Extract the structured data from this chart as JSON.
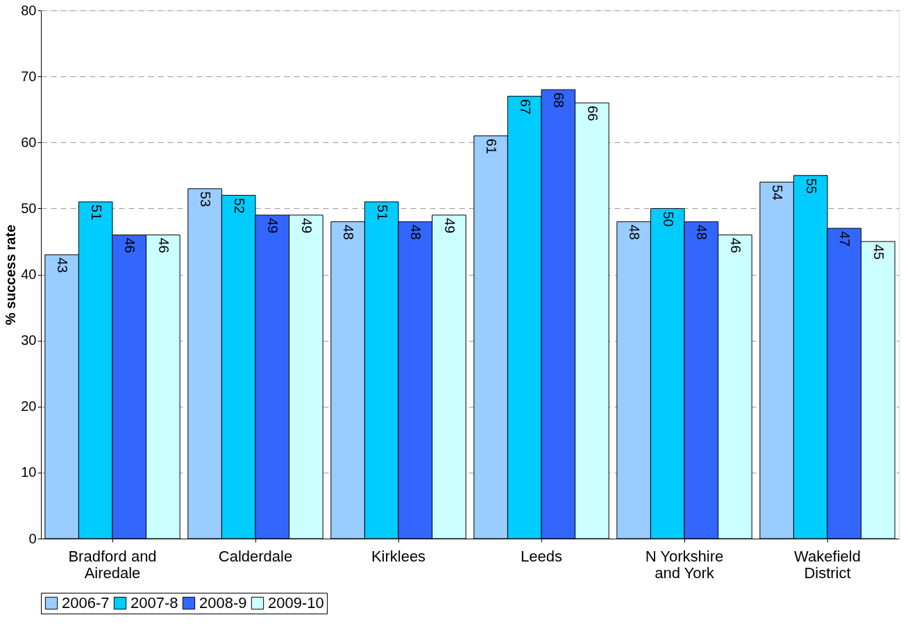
{
  "chart_data": {
    "type": "bar",
    "ylabel": "% success rate",
    "categories": [
      "Bradford and Airedale",
      "Calderdale",
      "Kirklees",
      "Leeds",
      "N Yorkshire and York",
      "Wakefield District"
    ],
    "series": [
      {
        "name": "2006-7",
        "color": "#99ccff",
        "values": [
          43,
          53,
          48,
          61,
          48,
          54
        ]
      },
      {
        "name": "2007-8",
        "color": "#00ccff",
        "values": [
          51,
          52,
          51,
          67,
          50,
          55
        ]
      },
      {
        "name": "2008-9",
        "color": "#3366ff",
        "values": [
          46,
          49,
          48,
          68,
          48,
          47
        ]
      },
      {
        "name": "2009-10",
        "color": "#ccffff",
        "values": [
          46,
          49,
          49,
          66,
          46,
          45
        ]
      }
    ],
    "ylim": [
      0,
      80
    ],
    "yticks": [
      0,
      10,
      20,
      30,
      40,
      50,
      60,
      70,
      80
    ],
    "grid": "y",
    "legend": "bottom",
    "data_labels": true
  }
}
